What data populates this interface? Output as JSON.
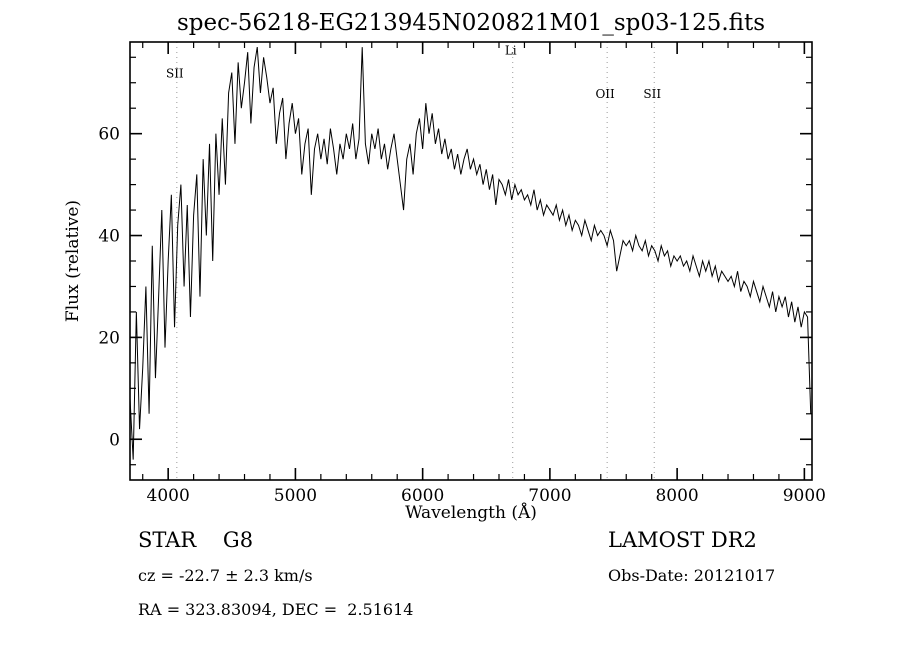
{
  "title": "spec-56218-EG213945N020821M01_sp03-125.fits",
  "axes": {
    "xlabel": "Wavelength (Å)",
    "ylabel": "Flux (relative)",
    "xlim": [
      3700,
      9060
    ],
    "ylim": [
      -8,
      78
    ],
    "x_major_ticks": [
      4000,
      5000,
      6000,
      7000,
      8000,
      9000
    ],
    "x_minor_step": 200,
    "y_major_ticks": [
      0,
      20,
      40,
      60
    ],
    "y_minor_step": 5,
    "grid": "off",
    "frame_color": "#000000",
    "line_color": "#000000",
    "feature_line_color": "#9a9a9a"
  },
  "feature_lines": [
    {
      "label": "SII",
      "wavelength": 4068,
      "label_flux": 71
    },
    {
      "label": "Li",
      "wavelength": 6708,
      "label_flux": 75.5
    },
    {
      "label": "OII",
      "wavelength": 7450,
      "label_flux": 67
    },
    {
      "label": "SII",
      "wavelength": 7820,
      "label_flux": 67
    }
  ],
  "chart_data": {
    "type": "line",
    "title": "spec-56218-EG213945N020821M01_sp03-125.fits",
    "xlabel": "Wavelength (Å)",
    "ylabel": "Flux (relative)",
    "xlim": [
      3700,
      9060
    ],
    "ylim": [
      -8,
      78
    ],
    "legend": "none",
    "x_start": 3700,
    "x_step": 25,
    "values": [
      8,
      -4,
      25,
      2,
      14,
      30,
      5,
      38,
      12,
      28,
      45,
      18,
      35,
      48,
      22,
      42,
      50,
      30,
      46,
      24,
      44,
      52,
      28,
      55,
      40,
      58,
      35,
      60,
      48,
      63,
      50,
      68,
      72,
      58,
      74,
      65,
      70,
      76,
      62,
      73,
      77,
      68,
      75,
      71,
      66,
      69,
      58,
      64,
      67,
      55,
      62,
      66,
      60,
      63,
      52,
      58,
      61,
      48,
      57,
      60,
      55,
      59,
      54,
      61,
      57,
      52,
      58,
      55,
      60,
      57,
      62,
      55,
      59,
      77,
      58,
      54,
      60,
      57,
      61,
      55,
      58,
      53,
      57,
      60,
      55,
      50,
      45,
      55,
      58,
      52,
      60,
      63,
      57,
      66,
      60,
      64,
      58,
      61,
      56,
      59,
      55,
      57,
      53,
      56,
      52,
      55,
      57,
      53,
      55,
      52,
      54,
      50,
      53,
      49,
      52,
      46,
      51,
      50,
      48,
      51,
      47,
      50,
      48,
      49,
      47,
      48,
      46,
      49,
      45,
      47,
      44,
      46,
      45,
      44,
      46,
      43,
      45,
      42,
      44,
      41,
      43,
      42,
      40,
      43,
      41,
      39,
      42,
      40,
      41,
      40,
      38,
      41,
      39,
      33,
      36,
      39,
      38,
      39,
      37,
      40,
      38,
      37,
      39,
      36,
      38,
      37,
      35,
      38,
      36,
      37,
      34,
      36,
      35,
      36,
      34,
      35,
      33,
      36,
      34,
      32,
      35,
      33,
      35,
      32,
      34,
      31,
      33,
      32,
      31,
      32,
      30,
      33,
      29,
      31,
      30,
      28,
      31,
      29,
      27,
      30,
      28,
      26,
      29,
      25,
      28,
      26,
      28,
      24,
      27,
      23,
      26,
      22,
      25,
      24,
      5
    ]
  },
  "footer": {
    "class_label": "STAR    G8",
    "survey": "LAMOST DR2",
    "cz": "cz = -22.7 ± 2.3 km/s",
    "obs_date": "Obs-Date: 20121017",
    "coords": "RA = 323.83094, DEC =  2.51614"
  }
}
